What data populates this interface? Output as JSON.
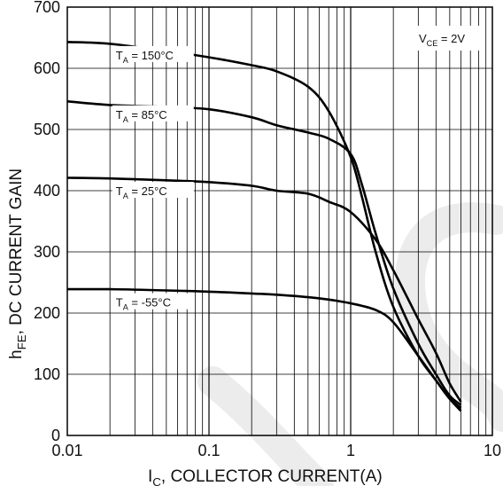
{
  "chart_data": {
    "type": "line",
    "x_scale": "log",
    "xlim": [
      0.01,
      10
    ],
    "ylim": [
      0,
      700
    ],
    "x_ticks": [
      "0.01",
      "0.1",
      "1",
      "10"
    ],
    "y_ticks": [
      "0",
      "100",
      "200",
      "300",
      "400",
      "500",
      "600",
      "700"
    ],
    "xlabel": {
      "main": "I",
      "sub": "C",
      "rest": ", COLLECTOR CURRENT(A)"
    },
    "ylabel": {
      "main": "h",
      "sub": "FE",
      "rest": ", DC CURRENT GAIN"
    },
    "condition": {
      "main": "V",
      "sub": "CE",
      "rest": " = 2V"
    },
    "grid": true,
    "series": [
      {
        "label": {
          "main": "T",
          "sub": "A",
          "rest": " = 150°C"
        },
        "x": [
          0.01,
          0.02,
          0.05,
          0.1,
          0.2,
          0.3,
          0.5,
          0.7,
          1.0,
          1.2,
          1.5,
          2,
          3,
          4,
          5,
          6
        ],
        "y": [
          643,
          640,
          628,
          618,
          605,
          595,
          570,
          530,
          455,
          390,
          300,
          210,
          130,
          90,
          60,
          45
        ]
      },
      {
        "label": {
          "main": "T",
          "sub": "A",
          "rest": " = 85°C"
        },
        "x": [
          0.01,
          0.02,
          0.05,
          0.1,
          0.2,
          0.3,
          0.5,
          0.7,
          1.0,
          1.2,
          1.5,
          2,
          3,
          4,
          5,
          6
        ],
        "y": [
          546,
          540,
          537,
          533,
          520,
          507,
          495,
          485,
          460,
          410,
          330,
          240,
          150,
          100,
          65,
          50
        ]
      },
      {
        "label": {
          "main": "T",
          "sub": "A",
          "rest": " = 25°C"
        },
        "x": [
          0.01,
          0.02,
          0.05,
          0.1,
          0.2,
          0.3,
          0.5,
          0.7,
          1.0,
          1.5,
          2,
          3,
          4,
          5,
          6
        ],
        "y": [
          421,
          420,
          417,
          414,
          408,
          400,
          395,
          382,
          365,
          320,
          270,
          190,
          135,
          85,
          55
        ]
      },
      {
        "label": {
          "main": "T",
          "sub": "A",
          "rest": " = -55°C"
        },
        "x": [
          0.01,
          0.02,
          0.05,
          0.1,
          0.2,
          0.3,
          0.5,
          0.7,
          1.0,
          1.5,
          2,
          3,
          4,
          5,
          6
        ],
        "y": [
          239,
          239,
          237,
          235,
          232,
          230,
          226,
          222,
          216,
          205,
          185,
          130,
          90,
          60,
          40
        ]
      }
    ]
  },
  "colors": {
    "line": "#000000",
    "grid": "#000000",
    "watermark": "#ececec"
  }
}
